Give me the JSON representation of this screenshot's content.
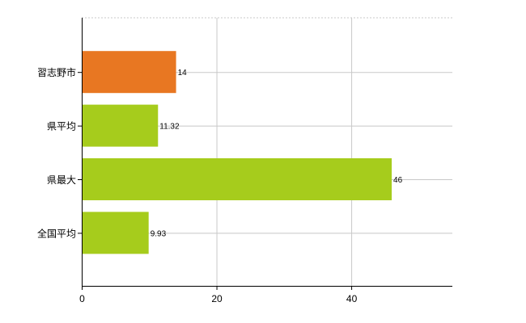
{
  "chart_data": {
    "type": "bar",
    "orientation": "horizontal",
    "categories": [
      "習志野市",
      "県平均",
      "県最大",
      "全国平均"
    ],
    "values": [
      14,
      11.32,
      46,
      9.93
    ],
    "value_labels": [
      "14",
      "11.32",
      "46",
      "9.93"
    ],
    "bar_colors": [
      "#e87722",
      "#a6cc1c",
      "#a6cc1c",
      "#a6cc1c"
    ],
    "xlim": [
      0,
      55
    ],
    "x_ticks": [
      0,
      20,
      40
    ],
    "x_tick_labels": [
      "0",
      "20",
      "40"
    ],
    "grid": true,
    "legend": "none",
    "title": "",
    "xlabel": "",
    "ylabel": ""
  }
}
